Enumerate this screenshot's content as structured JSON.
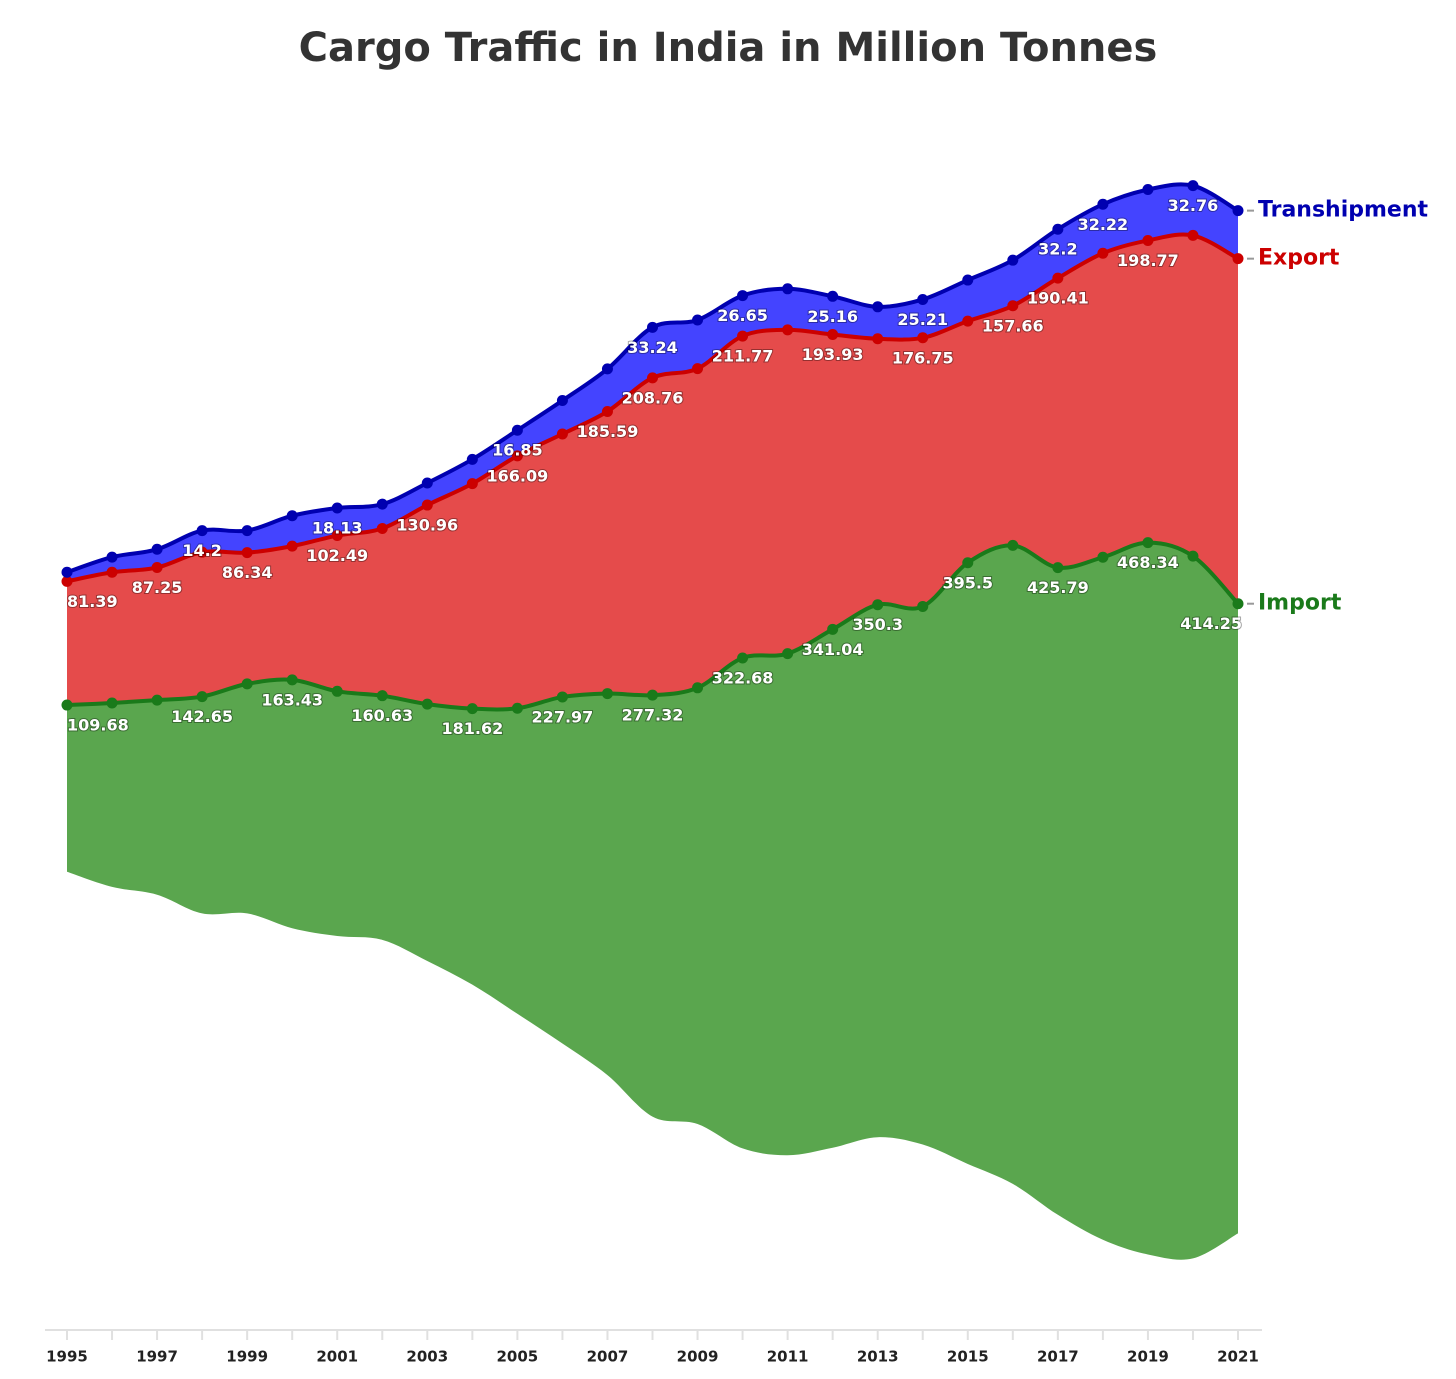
{
  "chart_data": {
    "type": "streamgraph",
    "title": "Cargo Traffic in India in Million Tonnes",
    "x": [
      1995,
      1996,
      1997,
      1998,
      1999,
      2000,
      2001,
      2002,
      2003,
      2004,
      2005,
      2006,
      2007,
      2008,
      2009,
      2010,
      2011,
      2012,
      2013,
      2014,
      2015,
      2016,
      2017,
      2018,
      2019,
      2020,
      2021
    ],
    "xlim": [
      1995,
      2021
    ],
    "xticks": [
      1995,
      1997,
      1999,
      2001,
      2003,
      2005,
      2007,
      2009,
      2011,
      2013,
      2015,
      2017,
      2019,
      2021
    ],
    "series": [
      {
        "name": "Import",
        "color": "#1a7a1a",
        "fill": "#5aa64e",
        "values": [
          109.68,
          121,
          128,
          142.65,
          151,
          163.43,
          161,
          160.63,
          169,
          181.62,
          201,
          227.97,
          251,
          277.32,
          287,
          322.68,
          330,
          341.04,
          350.3,
          354,
          395.5,
          420,
          425.79,
          449,
          468.34,
          462,
          414.25
        ],
        "value_labels": [
          "109.68",
          null,
          null,
          "142.65",
          null,
          "163.43",
          null,
          "160.63",
          null,
          "181.62",
          null,
          "227.97",
          null,
          "277.32",
          null,
          "322.68",
          null,
          "341.04",
          "350.3",
          null,
          "395.5",
          null,
          "425.79",
          null,
          "468.34",
          null,
          "414.25"
        ]
      },
      {
        "name": "Export",
        "color": "#cc0000",
        "fill": "#e54b4b",
        "values": [
          81.39,
          86,
          87.25,
          95,
          86.34,
          88,
          102.49,
          110,
          130.96,
          148,
          166.09,
          173,
          185.59,
          208.76,
          210,
          211.77,
          213,
          193.93,
          175,
          176.75,
          159,
          157.66,
          190.41,
          200,
          198.77,
          211,
          227
        ],
        "value_labels": [
          "81.39",
          null,
          "87.25",
          null,
          "86.34",
          null,
          "102.49",
          null,
          "130.96",
          null,
          "166.09",
          null,
          "185.59",
          "208.76",
          null,
          "211.77",
          null,
          "193.93",
          null,
          "176.75",
          null,
          "157.66",
          "190.41",
          null,
          "198.77",
          null,
          null
        ]
      },
      {
        "name": "Transhipment",
        "color": "#0000b0",
        "fill": "#4444ff",
        "values": [
          6,
          10,
          12,
          14.2,
          14.5,
          20,
          18.13,
          16,
          14.5,
          16,
          16.85,
          22,
          28,
          33.24,
          32,
          26.65,
          27,
          25.16,
          21,
          25.21,
          27,
          30,
          32.2,
          32.22,
          33.5,
          32.76,
          31.6
        ],
        "value_labels": [
          null,
          null,
          null,
          "14.2",
          null,
          null,
          "18.13",
          null,
          null,
          null,
          "16.85",
          null,
          null,
          "33.24",
          null,
          "26.65",
          null,
          "25.16",
          null,
          "25.21",
          null,
          null,
          "32.2",
          "32.22",
          null,
          "32.76",
          null
        ]
      }
    ]
  }
}
